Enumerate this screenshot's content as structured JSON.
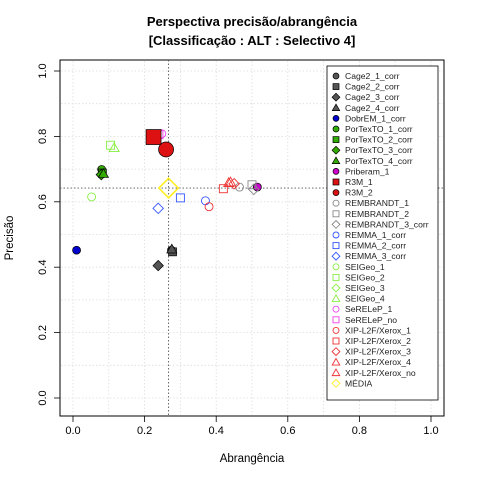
{
  "chart_data": {
    "type": "scatter",
    "title": "Perspectiva precisão/abrangência",
    "subtitle": "[Classificação : ALT : Selectivo 4]",
    "xlabel": "Abrangência",
    "ylabel": "Precisão",
    "xlim": [
      0,
      1
    ],
    "ylim": [
      0,
      1
    ],
    "x_ticks": [
      "0.0",
      "0.2",
      "0.4",
      "0.6",
      "0.8",
      "1.0"
    ],
    "y_ticks": [
      "0.0",
      "0.2",
      "0.4",
      "0.6",
      "0.8",
      "1.0"
    ],
    "grid": true,
    "legend_position": "right",
    "reference_lines": {
      "x": 0.267,
      "y": 0.642
    },
    "series": [
      {
        "name": "Cage2_1_corr",
        "marker": "circle",
        "fill": true,
        "color": "#555555",
        "points": [
          [
            0.275,
            0.452
          ]
        ]
      },
      {
        "name": "Cage2_2_corr",
        "marker": "square",
        "fill": true,
        "color": "#555555",
        "points": [
          [
            0.278,
            0.447
          ]
        ]
      },
      {
        "name": "Cage2_3_corr",
        "marker": "diamond",
        "fill": true,
        "color": "#555555",
        "points": [
          [
            0.238,
            0.405
          ]
        ]
      },
      {
        "name": "Cage2_4_corr",
        "marker": "triangle",
        "fill": true,
        "color": "#555555",
        "points": [
          [
            0.276,
            0.455
          ]
        ]
      },
      {
        "name": "DobrEM_1_corr",
        "marker": "circle",
        "fill": true,
        "color": "#0000cc",
        "points": [
          [
            0.01,
            0.452
          ]
        ]
      },
      {
        "name": "PorTexTO_1_corr",
        "marker": "circle",
        "fill": true,
        "color": "#33aa00",
        "points": [
          [
            0.08,
            0.699
          ]
        ]
      },
      {
        "name": "PorTexTO_2_corr",
        "marker": "square",
        "fill": true,
        "color": "#33aa00",
        "points": [
          [
            0.082,
            0.688
          ]
        ]
      },
      {
        "name": "PorTexTO_3_corr",
        "marker": "diamond",
        "fill": true,
        "color": "#33aa00",
        "points": [
          [
            0.079,
            0.683
          ]
        ]
      },
      {
        "name": "PorTexTO_4_corr",
        "marker": "triangle",
        "fill": true,
        "color": "#33aa00",
        "points": [
          [
            0.085,
            0.686
          ]
        ]
      },
      {
        "name": "Priberam_1",
        "marker": "circle",
        "fill": true,
        "color": "#cc00cc",
        "points": [
          [
            0.515,
            0.645
          ]
        ]
      },
      {
        "name": "R3M_1",
        "marker": "square",
        "fill": true,
        "color": "#dd1111",
        "big": true,
        "points": [
          [
            0.225,
            0.798
          ]
        ]
      },
      {
        "name": "R3M_2",
        "marker": "circle",
        "fill": true,
        "color": "#dd1111",
        "big": true,
        "points": [
          [
            0.26,
            0.76
          ]
        ]
      },
      {
        "name": "REMBRANDT_1",
        "marker": "circle",
        "fill": false,
        "color": "#888888",
        "points": [
          [
            0.465,
            0.645
          ]
        ]
      },
      {
        "name": "REMBRANDT_2",
        "marker": "square",
        "fill": false,
        "color": "#888888",
        "points": [
          [
            0.5,
            0.652
          ]
        ]
      },
      {
        "name": "REMBRANDT_3_corr",
        "marker": "diamond",
        "fill": false,
        "color": "#888888",
        "points": [
          [
            0.505,
            0.638
          ]
        ]
      },
      {
        "name": "REMMA_1_corr",
        "marker": "circle",
        "fill": false,
        "color": "#3355ff",
        "points": [
          [
            0.37,
            0.603
          ]
        ]
      },
      {
        "name": "REMMA_2_corr",
        "marker": "square",
        "fill": false,
        "color": "#3355ff",
        "points": [
          [
            0.3,
            0.612
          ]
        ]
      },
      {
        "name": "REMMA_3_corr",
        "marker": "diamond",
        "fill": false,
        "color": "#3355ff",
        "points": [
          [
            0.238,
            0.58
          ]
        ]
      },
      {
        "name": "SEIGeo_1",
        "marker": "circle",
        "fill": false,
        "color": "#88ee44",
        "points": [
          [
            0.052,
            0.615
          ]
        ]
      },
      {
        "name": "SEIGeo_2",
        "marker": "square",
        "fill": false,
        "color": "#88ee44",
        "points": [
          [
            0.105,
            0.773
          ]
        ]
      },
      {
        "name": "SEIGeo_3",
        "marker": "diamond",
        "fill": false,
        "color": "#88ee44",
        "points": []
      },
      {
        "name": "SEIGeo_4",
        "marker": "triangle",
        "fill": false,
        "color": "#88ee44",
        "points": [
          [
            0.115,
            0.765
          ]
        ]
      },
      {
        "name": "SeRELeP_1",
        "marker": "circle",
        "fill": false,
        "color": "#ee44ee",
        "points": [
          [
            0.248,
            0.808
          ]
        ]
      },
      {
        "name": "SeRELeP_no",
        "marker": "square",
        "fill": false,
        "color": "#ee44ee",
        "points": [
          [
            0.24,
            0.805
          ]
        ]
      },
      {
        "name": "XIP-L2F/Xerox_1",
        "marker": "circle",
        "fill": false,
        "color": "#ee3333",
        "points": [
          [
            0.38,
            0.585
          ]
        ]
      },
      {
        "name": "XIP-L2F/Xerox_2",
        "marker": "square",
        "fill": false,
        "color": "#ee3333",
        "points": [
          [
            0.42,
            0.64
          ]
        ]
      },
      {
        "name": "XIP-L2F/Xerox_3",
        "marker": "diamond",
        "fill": false,
        "color": "#ee3333",
        "points": [
          [
            0.45,
            0.655
          ]
        ]
      },
      {
        "name": "XIP-L2F/Xerox_4",
        "marker": "triangle",
        "fill": false,
        "color": "#ee3333",
        "points": [
          [
            0.435,
            0.658
          ]
        ]
      },
      {
        "name": "XIP-L2F/Xerox_no",
        "marker": "triangle",
        "fill": false,
        "color": "#ee3333",
        "points": [
          [
            0.44,
            0.66
          ]
        ]
      },
      {
        "name": "MÉDIA",
        "marker": "diamond",
        "fill": false,
        "color": "#ffee22",
        "big": true,
        "points": [
          [
            0.267,
            0.642
          ]
        ]
      }
    ]
  }
}
